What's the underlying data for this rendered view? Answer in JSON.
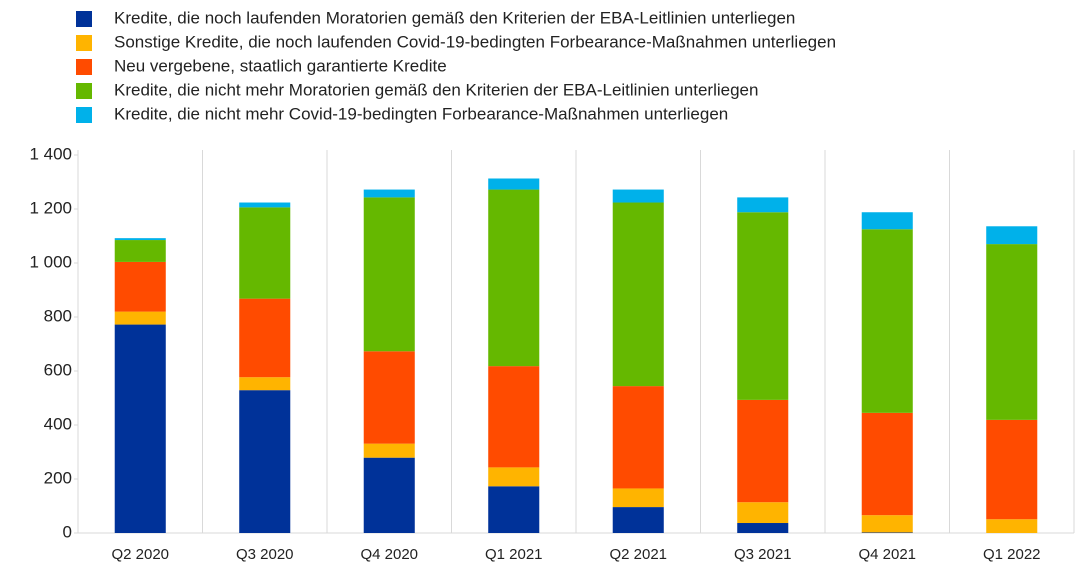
{
  "chart_data": {
    "type": "stacked_bar",
    "categories": [
      "Q2 2020",
      "Q3 2020",
      "Q4 2020",
      "Q1 2021",
      "Q2 2021",
      "Q3 2021",
      "Q4 2021",
      "Q1 2022"
    ],
    "series": [
      {
        "name": "Kredite, die noch laufenden Moratorien gemäß den Kriterien der EBA-Leitlinien unterliegen",
        "color": "#003299",
        "values": [
          772,
          529,
          279,
          173,
          96,
          37,
          2,
          0
        ]
      },
      {
        "name": "Sonstige Kredite, die noch laufenden Covid-19-bedingten Forbearance-Maßnahmen unterliegen",
        "color": "#ffb400",
        "values": [
          48,
          48,
          52,
          70,
          69,
          77,
          64,
          51
        ]
      },
      {
        "name": "Neu vergebene, staatlich garantierte Kredite",
        "color": "#ff4b00",
        "values": [
          184,
          291,
          342,
          375,
          379,
          379,
          379,
          368
        ]
      },
      {
        "name": "Kredite, die nicht mehr Moratorien gemäß den Kriterien der EBA-Leitlinien unterliegen",
        "color": "#65b800",
        "values": [
          81,
          338,
          570,
          654,
          680,
          695,
          680,
          651
        ]
      },
      {
        "name": "Kredite, die nicht mehr Covid-19-bedingten Forbearance-Maßnahmen unterliegen",
        "color": "#00b1ea",
        "values": [
          7,
          18,
          29,
          41,
          48,
          55,
          63,
          66
        ]
      }
    ],
    "ylim": [
      0,
      1400
    ],
    "yticks": [
      0,
      200,
      400,
      600,
      800,
      {
        "value": 1000,
        "label": "1 000"
      },
      {
        "value": 1200,
        "label": "1 200"
      },
      {
        "value": 1400,
        "label": "1 400"
      }
    ],
    "grid": false,
    "legend": "top"
  }
}
